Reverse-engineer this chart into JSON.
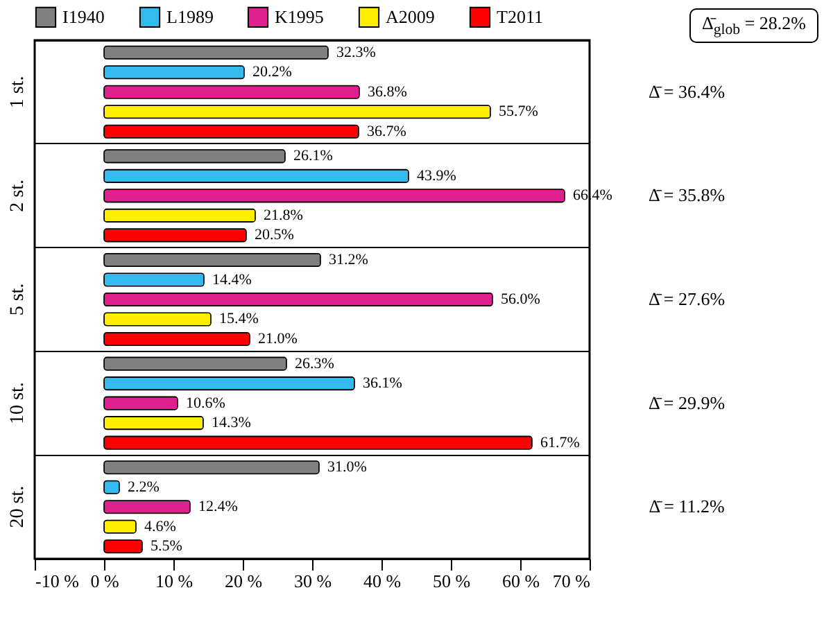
{
  "chart_data": {
    "type": "bar",
    "orientation": "horizontal",
    "categories": [
      "1 st.",
      "2 st.",
      "5 st.",
      "10 st.",
      "20 st."
    ],
    "series": [
      {
        "name": "I1940",
        "color": "#808080",
        "values": [
          32.3,
          26.1,
          31.2,
          26.3,
          31.0
        ],
        "value_labels": [
          "32.3%",
          "26.1%",
          "31.2%",
          "26.3%",
          "31.0%"
        ]
      },
      {
        "name": "L1989",
        "color": "#33bbee",
        "values": [
          20.2,
          43.9,
          14.4,
          36.1,
          2.2
        ],
        "value_labels": [
          "20.2%",
          "43.9%",
          "14.4%",
          "36.1%",
          "2.2%"
        ]
      },
      {
        "name": "K1995",
        "color": "#e0208f",
        "values": [
          36.8,
          66.4,
          56.0,
          10.6,
          12.4
        ],
        "value_labels": [
          "36.8%",
          "66.4%",
          "56.0%",
          "10.6%",
          "12.4%"
        ]
      },
      {
        "name": "A2009",
        "color": "#ffee00",
        "values": [
          55.7,
          21.8,
          15.4,
          14.3,
          4.6
        ],
        "value_labels": [
          "55.7%",
          "21.8%",
          "15.4%",
          "14.3%",
          "4.6%"
        ]
      },
      {
        "name": "T2011",
        "color": "#ff0000",
        "values": [
          36.7,
          20.5,
          21.0,
          61.7,
          5.5
        ],
        "value_labels": [
          "36.7%",
          "20.5%",
          "21.0%",
          "61.7%",
          "5.5%"
        ]
      }
    ],
    "xlim": [
      -10,
      70
    ],
    "xticks": [
      {
        "value": -10,
        "label": "-10 %"
      },
      {
        "value": 0,
        "label": "0 %"
      },
      {
        "value": 10,
        "label": "10 %"
      },
      {
        "value": 20,
        "label": "20 %"
      },
      {
        "value": 30,
        "label": "30 %"
      },
      {
        "value": 40,
        "label": "40 %"
      },
      {
        "value": 50,
        "label": "50 %"
      },
      {
        "value": 60,
        "label": "60 %"
      },
      {
        "value": 70,
        "label": "70 %"
      }
    ],
    "annotations": [
      "Δ̄$_{glob}$ = 28.2%",
      "Δ̄ = 36.4%",
      "Δ̄ = 35.8%",
      "Δ̄ = 27.6%",
      "Δ̄ = 29.9%",
      "Δ̄ = 11.2%"
    ],
    "grid": "y",
    "legend": "top"
  }
}
